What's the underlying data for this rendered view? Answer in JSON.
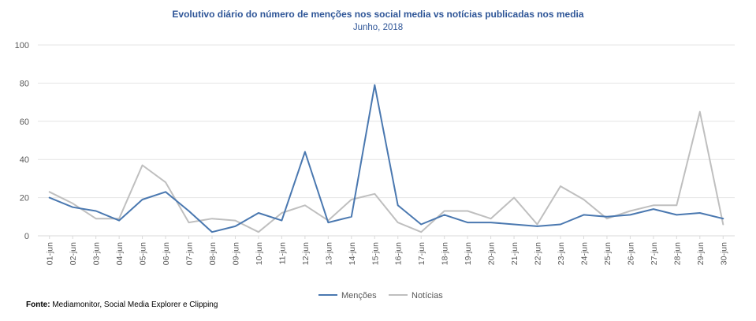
{
  "chart_data": {
    "type": "line",
    "title": "Evolutivo  diário do número de menções nos social  media vs notícias  publicadas  nos media",
    "subtitle": "Junho, 2018",
    "categories": [
      "01-jun",
      "02-jun",
      "03-jun",
      "04-jun",
      "05-jun",
      "06-jun",
      "07-jun",
      "08-jun",
      "09-jun",
      "10-jun",
      "11-jun",
      "12-jun",
      "13-jun",
      "14-jun",
      "15-jun",
      "16-jun",
      "17-jun",
      "18-jun",
      "19-jun",
      "20-jun",
      "21-jun",
      "22-jun",
      "23-jun",
      "24-jun",
      "25-jun",
      "26-jun",
      "27-jun",
      "28-jun",
      "29-jun",
      "30-jun"
    ],
    "series": [
      {
        "name": "Menções",
        "color": "#4a78b0",
        "values": [
          20,
          15,
          13,
          8,
          19,
          23,
          13,
          2,
          5,
          12,
          8,
          44,
          7,
          10,
          79,
          16,
          6,
          11,
          7,
          7,
          6,
          5,
          6,
          11,
          10,
          11,
          14,
          11,
          12,
          9
        ]
      },
      {
        "name": "Notícias",
        "color": "#bfbfbf",
        "values": [
          23,
          17,
          9,
          9,
          37,
          28,
          7,
          9,
          8,
          2,
          12,
          16,
          8,
          19,
          22,
          7,
          2,
          13,
          13,
          9,
          20,
          6,
          26,
          19,
          9,
          13,
          16,
          16,
          65,
          6
        ]
      }
    ],
    "ylim": [
      0,
      100
    ],
    "yticks": [
      0,
      20,
      40,
      60,
      80,
      100
    ],
    "grid": true,
    "legend": "bottom-center",
    "xlabel": "",
    "ylabel": ""
  },
  "source": {
    "label": "Fonte:",
    "text": "Mediamonitor, Social Media Explorer e Clipping"
  }
}
